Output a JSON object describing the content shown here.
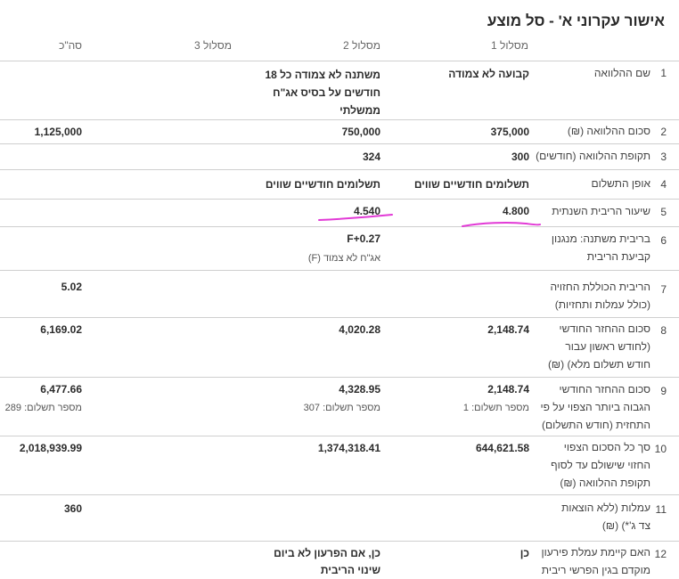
{
  "title": "אישור עקרוני א' - סל מוצע",
  "columns": {
    "route1": "מסלול 1",
    "route2": "מסלול 2",
    "route3": "מסלול 3",
    "total": "סה\"כ"
  },
  "rows": [
    {
      "num": "1",
      "label": "שם ההלוואה",
      "r1": "קבועה לא צמודה",
      "r2": "משתנה לא צמודה כל 18 חודשים על בסיס אג\"ח ממשלתי",
      "total": ""
    },
    {
      "num": "2",
      "label": "סכום ההלוואה (₪)",
      "r1": "375,000",
      "r2": "750,000",
      "total": "1,125,000"
    },
    {
      "num": "3",
      "label": "תקופת ההלוואה (חודשים)",
      "r1": "300",
      "r2": "324",
      "total": ""
    },
    {
      "num": "4",
      "label": "אופן התשלום",
      "r1": "תשלומים חודשיים שווים",
      "r2": "תשלומים חודשיים שווים",
      "total": ""
    },
    {
      "num": "5",
      "label": "שיעור הריבית השנתית",
      "r1": "4.800",
      "r2": "4.540",
      "total": ""
    },
    {
      "num": "6",
      "label": "בריבית משתנה: מנגנון קביעת הריבית",
      "r1": "",
      "r2": "F+0.27",
      "r2_sub": "אג\"ח לא צמוד (F)",
      "total": ""
    },
    {
      "num": "7",
      "label": "הריבית הכוללת החזויה (כולל עמלות ותחזיות)",
      "r1": "",
      "r2": "",
      "total": "5.02"
    },
    {
      "num": "8",
      "label": "סכום ההחזר החודשי (לחודש ראשון עבור חודש תשלום מלא) (₪)",
      "r1": "2,148.74",
      "r2": "4,020.28",
      "total": "6,169.02"
    },
    {
      "num": "9",
      "label": "סכום ההחזר החודשי הגבוה ביותר הצפוי על פי התחזית (חודש התשלום)",
      "r1": "2,148.74",
      "r1_sub": "מספר תשלום: 1",
      "r2": "4,328.95",
      "r2_sub": "מספר תשלום: 307",
      "total": "6,477.66",
      "total_sub": "מספר תשלום: 289"
    },
    {
      "num": "10",
      "label": "סך כל הסכום הצפוי החזוי שישולם עד לסוף תקופת ההלוואה (₪)",
      "r1": "644,621.58",
      "r2": "1,374,318.41",
      "total": "2,018,939.99"
    },
    {
      "num": "11",
      "label": "עמלות (ללא הוצאות צד ג'*) (₪)",
      "r1": "",
      "r2": "",
      "total": "360"
    },
    {
      "num": "12",
      "label": "האם קיימת עמלת פירעון מוקדם בגין הפרשי ריבית",
      "r1": "כן",
      "r2": "כן, אם הפרעון לא ביום שינוי הריבית",
      "total": ""
    }
  ],
  "annotation_color": "#e23ad6"
}
